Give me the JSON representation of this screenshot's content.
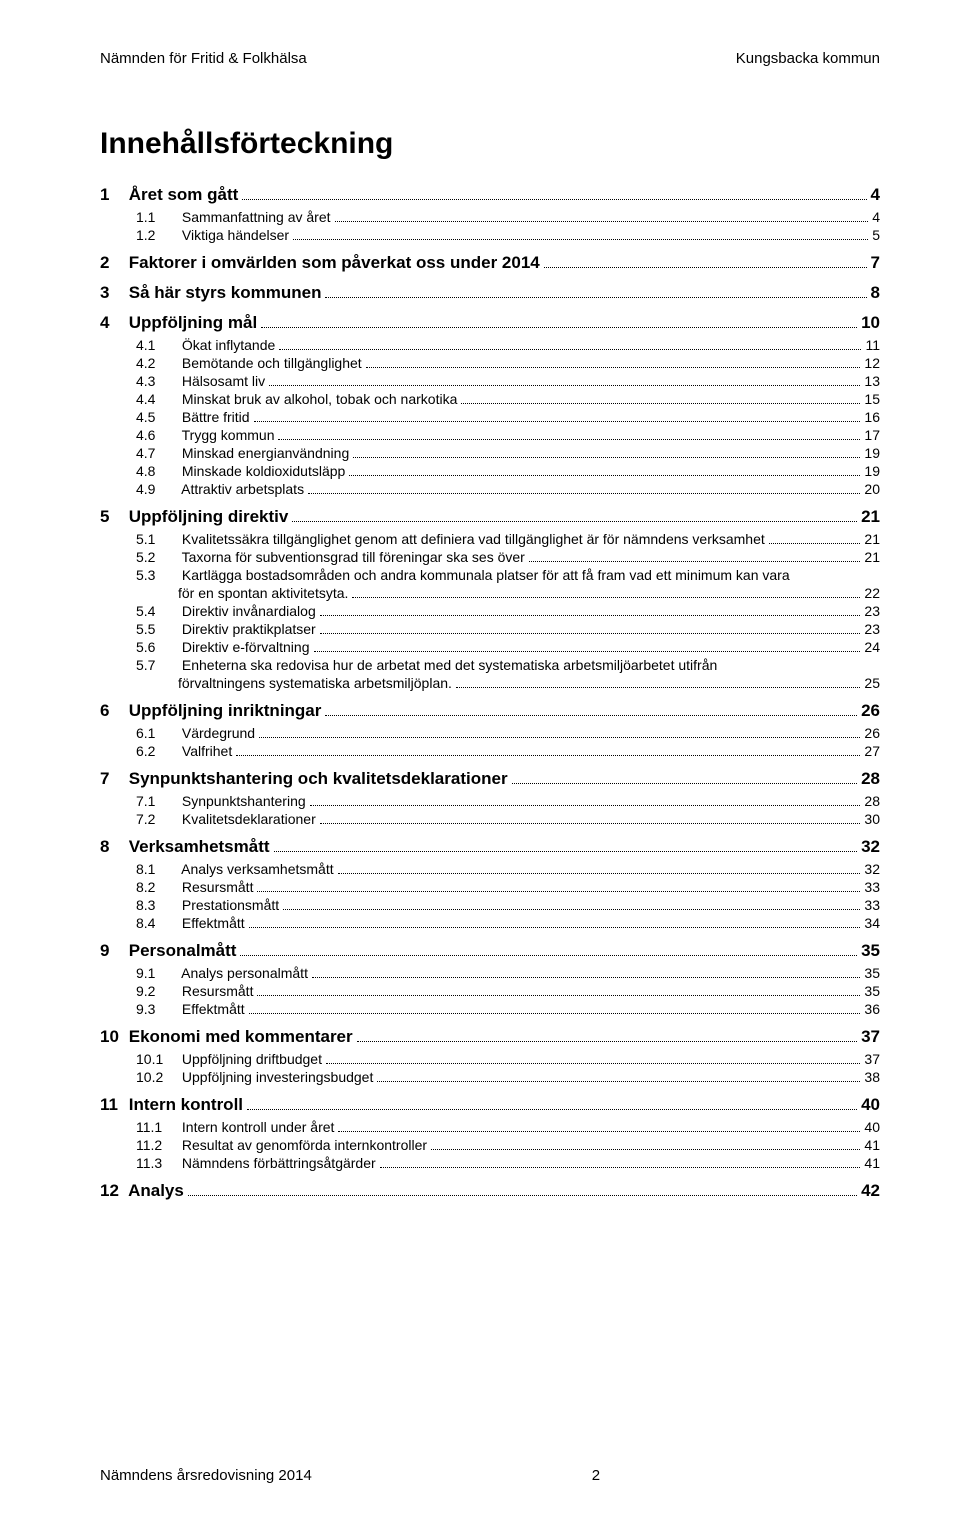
{
  "header": {
    "left": "Nämnden för Fritid & Folkhälsa",
    "right": "Kungsbacka kommun"
  },
  "title": "Innehållsförteckning",
  "footer": {
    "left": "Nämndens årsredovisning 2014",
    "page": "2"
  },
  "toc": [
    {
      "level": 1,
      "num": "1",
      "label": "Året som gått",
      "page": "4"
    },
    {
      "level": 2,
      "num": "1.1",
      "label": "Sammanfattning av året",
      "page": "4"
    },
    {
      "level": 2,
      "num": "1.2",
      "label": "Viktiga händelser",
      "page": "5"
    },
    {
      "level": 1,
      "num": "2",
      "label": "Faktorer i omvärlden som påverkat oss under 2014",
      "page": "7"
    },
    {
      "level": 1,
      "num": "3",
      "label": "Så här styrs kommunen",
      "page": "8"
    },
    {
      "level": 1,
      "num": "4",
      "label": "Uppföljning mål",
      "page": "10"
    },
    {
      "level": 2,
      "num": "4.1",
      "label": "Ökat inflytande",
      "page": "11"
    },
    {
      "level": 2,
      "num": "4.2",
      "label": "Bemötande och tillgänglighet",
      "page": "12"
    },
    {
      "level": 2,
      "num": "4.3",
      "label": "Hälsosamt liv",
      "page": "13"
    },
    {
      "level": 2,
      "num": "4.4",
      "label": "Minskat bruk av alkohol, tobak och narkotika",
      "page": "15"
    },
    {
      "level": 2,
      "num": "4.5",
      "label": "Bättre fritid",
      "page": "16"
    },
    {
      "level": 2,
      "num": "4.6",
      "label": "Trygg kommun",
      "page": "17"
    },
    {
      "level": 2,
      "num": "4.7",
      "label": "Minskad energianvändning",
      "page": "19"
    },
    {
      "level": 2,
      "num": "4.8",
      "label": "Minskade koldioxidutsläpp",
      "page": "19"
    },
    {
      "level": 2,
      "num": "4.9",
      "label": "Attraktiv arbetsplats",
      "page": "20"
    },
    {
      "level": 1,
      "num": "5",
      "label": "Uppföljning direktiv",
      "page": "21"
    },
    {
      "level": 2,
      "num": "5.1",
      "label": "Kvalitetssäkra tillgänglighet genom att definiera vad tillgänglighet är för nämndens verksamhet",
      "page": "21"
    },
    {
      "level": 2,
      "num": "5.2",
      "label": "Taxorna för subventionsgrad till föreningar ska ses över",
      "page": "21"
    },
    {
      "level": 2,
      "num": "5.3",
      "label": "Kartlägga bostadsområden och andra kommunala platser för att få fram vad ett minimum kan vara",
      "page": ""
    },
    {
      "level": 2,
      "num": "",
      "label": "för en spontan aktivitetsyta.",
      "page": "22",
      "cont": true
    },
    {
      "level": 2,
      "num": "5.4",
      "label": "Direktiv invånardialog",
      "page": "23"
    },
    {
      "level": 2,
      "num": "5.5",
      "label": "Direktiv praktikplatser",
      "page": "23"
    },
    {
      "level": 2,
      "num": "5.6",
      "label": "Direktiv e-förvaltning",
      "page": "24"
    },
    {
      "level": 2,
      "num": "5.7",
      "label": "Enheterna ska redovisa hur de arbetat med det systematiska arbetsmiljöarbetet utifrån",
      "page": ""
    },
    {
      "level": 2,
      "num": "",
      "label": "förvaltningens systematiska arbetsmiljöplan.",
      "page": "25",
      "cont": true
    },
    {
      "level": 1,
      "num": "6",
      "label": "Uppföljning inriktningar",
      "page": "26"
    },
    {
      "level": 2,
      "num": "6.1",
      "label": "Värdegrund",
      "page": "26"
    },
    {
      "level": 2,
      "num": "6.2",
      "label": "Valfrihet",
      "page": "27"
    },
    {
      "level": 1,
      "num": "7",
      "label": "Synpunktshantering och kvalitetsdeklarationer",
      "page": "28"
    },
    {
      "level": 2,
      "num": "7.1",
      "label": "Synpunktshantering",
      "page": "28"
    },
    {
      "level": 2,
      "num": "7.2",
      "label": "Kvalitetsdeklarationer",
      "page": "30"
    },
    {
      "level": 1,
      "num": "8",
      "label": "Verksamhetsmått",
      "page": "32"
    },
    {
      "level": 2,
      "num": "8.1",
      "label": "Analys verksamhetsmått",
      "page": "32"
    },
    {
      "level": 2,
      "num": "8.2",
      "label": "Resursmått",
      "page": "33"
    },
    {
      "level": 2,
      "num": "8.3",
      "label": "Prestationsmått",
      "page": "33"
    },
    {
      "level": 2,
      "num": "8.4",
      "label": "Effektmått",
      "page": "34"
    },
    {
      "level": 1,
      "num": "9",
      "label": "Personalmått",
      "page": "35"
    },
    {
      "level": 2,
      "num": "9.1",
      "label": "Analys personalmått",
      "page": "35"
    },
    {
      "level": 2,
      "num": "9.2",
      "label": "Resursmått",
      "page": "35"
    },
    {
      "level": 2,
      "num": "9.3",
      "label": "Effektmått",
      "page": "36"
    },
    {
      "level": 1,
      "num": "10",
      "label": "Ekonomi med kommentarer",
      "page": "37"
    },
    {
      "level": 2,
      "num": "10.1",
      "label": "Uppföljning driftbudget",
      "page": "37"
    },
    {
      "level": 2,
      "num": "10.2",
      "label": "Uppföljning investeringsbudget",
      "page": "38"
    },
    {
      "level": 1,
      "num": "11",
      "label": "Intern kontroll",
      "page": "40"
    },
    {
      "level": 2,
      "num": "11.1",
      "label": "Intern kontroll under året",
      "page": "40"
    },
    {
      "level": 2,
      "num": "11.2",
      "label": "Resultat av genomförda internkontroller",
      "page": "41"
    },
    {
      "level": 2,
      "num": "11.3",
      "label": "Nämndens förbättringsåtgärder",
      "page": "41"
    },
    {
      "level": 1,
      "num": "12",
      "label": "Analys",
      "page": "42"
    }
  ]
}
